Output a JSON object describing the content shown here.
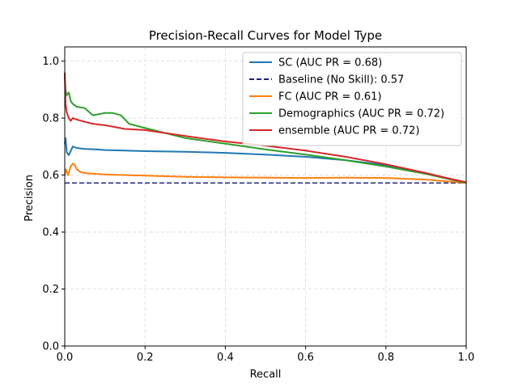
{
  "chart_data": {
    "type": "line",
    "title": "Precision-Recall Curves for Model Type",
    "xlabel": "Recall",
    "ylabel": "Precision",
    "xlim": [
      0,
      1
    ],
    "ylim": [
      0,
      1.05
    ],
    "x_ticks": [
      0,
      0.2,
      0.4,
      0.6,
      0.8,
      1.0
    ],
    "x_tick_labels": [
      "0.0",
      "0.2",
      "0.4",
      "0.6",
      "0.8",
      "1.0"
    ],
    "y_ticks": [
      0,
      0.2,
      0.4,
      0.6,
      0.8,
      1.0
    ],
    "y_tick_labels": [
      "0.0",
      "0.2",
      "0.4",
      "0.6",
      "0.8",
      "1.0"
    ],
    "grid": true,
    "legend_position": "upper-right",
    "series": [
      {
        "name": "SC (AUC PR = 0.68)",
        "color": "#1f77b4",
        "style": "solid",
        "x": [
          0,
          0.002,
          0.005,
          0.01,
          0.02,
          0.03,
          0.05,
          0.08,
          0.1,
          0.15,
          0.2,
          0.3,
          0.4,
          0.5,
          0.6,
          0.7,
          0.8,
          0.9,
          0.95,
          1.0
        ],
        "y": [
          0.71,
          0.73,
          0.68,
          0.67,
          0.7,
          0.695,
          0.692,
          0.69,
          0.688,
          0.686,
          0.684,
          0.682,
          0.678,
          0.672,
          0.664,
          0.652,
          0.635,
          0.607,
          0.59,
          0.572
        ]
      },
      {
        "name": "Baseline (No Skill): 0.57",
        "color": "#1f1f7f",
        "style": "dashed",
        "x": [
          0,
          1.0
        ],
        "y": [
          0.572,
          0.572
        ]
      },
      {
        "name": "FC (AUC PR = 0.61)",
        "color": "#ff7f0e",
        "style": "solid",
        "x": [
          0,
          0.003,
          0.008,
          0.015,
          0.02,
          0.025,
          0.03,
          0.04,
          0.05,
          0.1,
          0.2,
          0.3,
          0.4,
          0.5,
          0.6,
          0.7,
          0.8,
          0.9,
          0.95,
          1.0
        ],
        "y": [
          0.6,
          0.62,
          0.6,
          0.63,
          0.64,
          0.635,
          0.62,
          0.61,
          0.607,
          0.602,
          0.598,
          0.594,
          0.592,
          0.591,
          0.59,
          0.591,
          0.59,
          0.584,
          0.578,
          0.572
        ]
      },
      {
        "name": "Demographics (AUC PR = 0.72)",
        "color": "#2ca02c",
        "style": "solid",
        "x": [
          0,
          0.002,
          0.005,
          0.01,
          0.015,
          0.02,
          0.03,
          0.05,
          0.07,
          0.1,
          0.12,
          0.14,
          0.16,
          0.2,
          0.3,
          0.4,
          0.5,
          0.6,
          0.7,
          0.8,
          0.9,
          0.95,
          1.0
        ],
        "y": [
          0.95,
          0.9,
          0.88,
          0.89,
          0.86,
          0.85,
          0.84,
          0.835,
          0.81,
          0.818,
          0.818,
          0.81,
          0.78,
          0.765,
          0.73,
          0.71,
          0.69,
          0.672,
          0.652,
          0.63,
          0.604,
          0.588,
          0.572
        ]
      },
      {
        "name": "ensemble (AUC PR = 0.72)",
        "color": "#d62728",
        "style": "solid",
        "x": [
          0,
          0.002,
          0.005,
          0.01,
          0.015,
          0.02,
          0.03,
          0.05,
          0.07,
          0.1,
          0.15,
          0.2,
          0.3,
          0.4,
          0.5,
          0.6,
          0.7,
          0.8,
          0.9,
          0.95,
          1.0
        ],
        "y": [
          0.96,
          0.85,
          0.82,
          0.8,
          0.79,
          0.8,
          0.795,
          0.787,
          0.78,
          0.775,
          0.762,
          0.758,
          0.737,
          0.718,
          0.703,
          0.686,
          0.664,
          0.638,
          0.607,
          0.59,
          0.575
        ]
      }
    ]
  }
}
